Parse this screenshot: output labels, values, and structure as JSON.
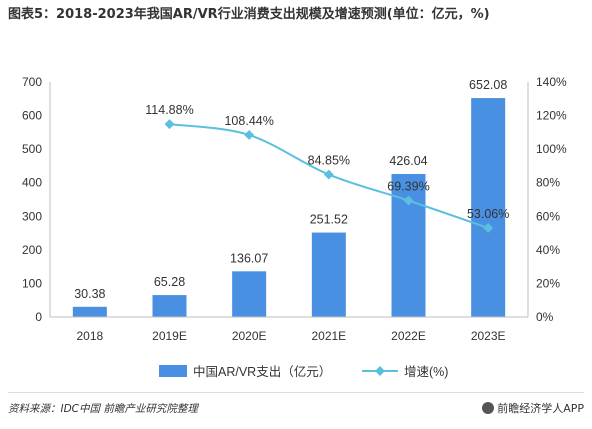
{
  "title": "图表5：2018-2023年我国AR/VR行业消费支出规模及增速预测(单位：亿元，%)",
  "source": "资料来源：IDC中国 前瞻产业研究院整理",
  "brand": "前瞻经济学人APP",
  "chart_data": {
    "type": "bar",
    "categories": [
      "2018",
      "2019E",
      "2020E",
      "2021E",
      "2022E",
      "2023E"
    ],
    "series": [
      {
        "name": "中国AR/VR支出（亿元）",
        "type": "bar",
        "axis": "left",
        "values": [
          30.38,
          65.28,
          136.07,
          251.52,
          426.04,
          652.08
        ],
        "labels": [
          "30.38",
          "65.28",
          "136.07",
          "251.52",
          "426.04",
          "652.08"
        ],
        "color": "#4a90e2"
      },
      {
        "name": "增速(%)",
        "type": "line",
        "axis": "right",
        "values": [
          null,
          114.88,
          108.44,
          84.85,
          69.39,
          53.06
        ],
        "labels": [
          "",
          "114.88%",
          "108.44%",
          "84.85%",
          "69.39%",
          "53.06%"
        ],
        "color": "#5bc0de"
      }
    ],
    "y_left": {
      "ylim": [
        0,
        700
      ],
      "ticks": [
        0,
        100,
        200,
        300,
        400,
        500,
        600,
        700
      ]
    },
    "y_right": {
      "ylim": [
        0,
        140
      ],
      "ticks": [
        "0%",
        "20%",
        "40%",
        "60%",
        "80%",
        "100%",
        "120%",
        "140%"
      ]
    },
    "legend": "bottom"
  }
}
